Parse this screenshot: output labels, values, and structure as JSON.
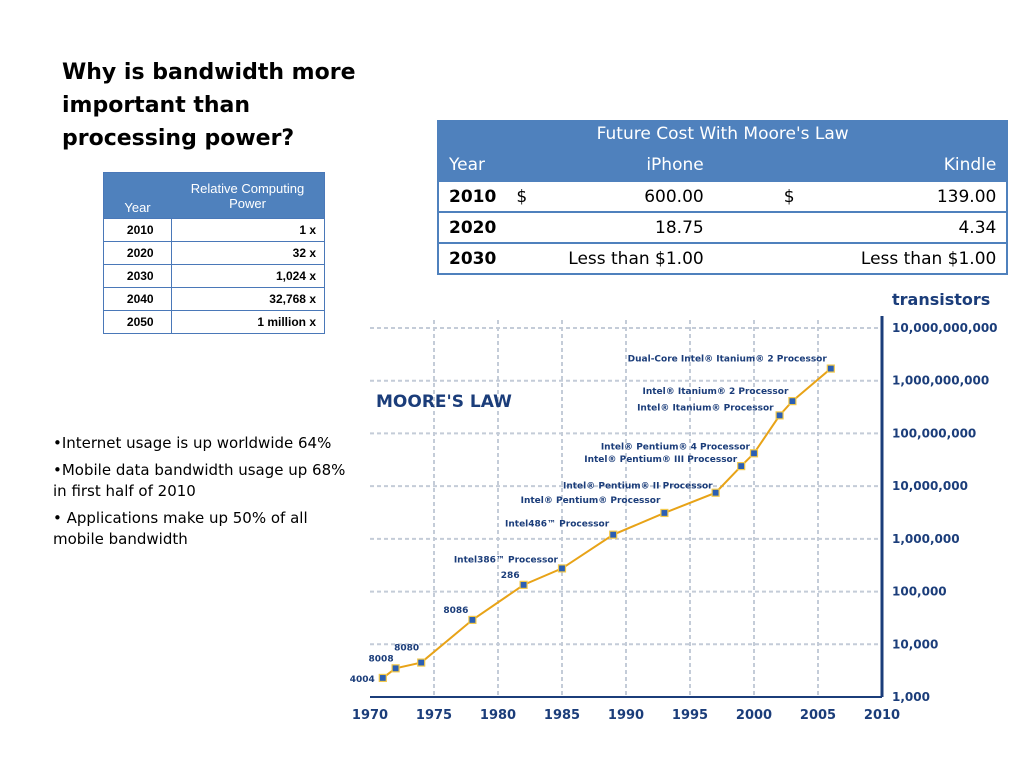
{
  "title": "Why is bandwidth more important than processing power?",
  "relative_computing_power": {
    "header_year": "Year",
    "header_power": "Relative Computing Power",
    "rows": [
      {
        "year": "2010",
        "power": "1 x"
      },
      {
        "year": "2020",
        "power": "32 x"
      },
      {
        "year": "2030",
        "power": "1,024 x"
      },
      {
        "year": "2040",
        "power": "32,768 x"
      },
      {
        "year": "2050",
        "power": "1 million x"
      }
    ]
  },
  "bullets": [
    "•Internet usage is up worldwide 64%",
    "•Mobile data bandwidth usage up 68% in first half of 2010",
    "• Applications make up 50% of all mobile bandwidth"
  ],
  "future_cost": {
    "title": "Future Cost With Moore's Law",
    "headers": [
      "Year",
      "iPhone",
      "Kindle"
    ],
    "rows": [
      {
        "year": "2010",
        "iphone_currency": "$",
        "iphone": "600.00",
        "kindle_currency": "$",
        "kindle": "139.00"
      },
      {
        "year": "2020",
        "iphone_currency": "",
        "iphone": "18.75",
        "kindle_currency": "",
        "kindle": "4.34"
      },
      {
        "year": "2030",
        "iphone_currency": "",
        "iphone": "Less than $1.00",
        "kindle_currency": "",
        "kindle": "Less than $1.00"
      }
    ],
    "header_color": "#4f81bd"
  },
  "chart_data": {
    "type": "line",
    "title": "MOORE'S LAW",
    "ylabel": "transistors",
    "y_scale": "log",
    "ylim": [
      1000,
      10000000000
    ],
    "xlim": [
      1970,
      2010
    ],
    "x_ticks": [
      "1970",
      "1975",
      "1980",
      "1985",
      "1990",
      "1995",
      "2000",
      "2005",
      "2010"
    ],
    "y_ticks": [
      "1,000",
      "10,000",
      "100,000",
      "1,000,000",
      "10,000,000",
      "100,000,000",
      "1,000,000,000",
      "10,000,000,000"
    ],
    "grid": true,
    "line_color": "#e8a317",
    "points": [
      {
        "label": "4004",
        "x": 1971,
        "y": 2300
      },
      {
        "label": "8008",
        "x": 1972,
        "y": 3500
      },
      {
        "label": "8080",
        "x": 1974,
        "y": 4500
      },
      {
        "label": "8086",
        "x": 1978,
        "y": 29000
      },
      {
        "label": "286",
        "x": 1982,
        "y": 134000
      },
      {
        "label": "Intel386™ Processor",
        "x": 1985,
        "y": 275000
      },
      {
        "label": "Intel486™ Processor",
        "x": 1989,
        "y": 1200000
      },
      {
        "label": "Intel® Pentium® Processor",
        "x": 1993,
        "y": 3100000
      },
      {
        "label": "Intel® Pentium® II Processor",
        "x": 1997,
        "y": 7500000
      },
      {
        "label": "Intel® Pentium® III Processor",
        "x": 1999,
        "y": 24000000
      },
      {
        "label": "Intel® Pentium® 4 Processor",
        "x": 2000,
        "y": 42000000
      },
      {
        "label": "Intel® Itanium® Processor",
        "x": 2002,
        "y": 220000000
      },
      {
        "label": "Intel® Itanium® 2 Processor",
        "x": 2003,
        "y": 410000000
      },
      {
        "label": "Dual-Core Intel® Itanium® 2 Processor",
        "x": 2006,
        "y": 1700000000
      }
    ]
  }
}
